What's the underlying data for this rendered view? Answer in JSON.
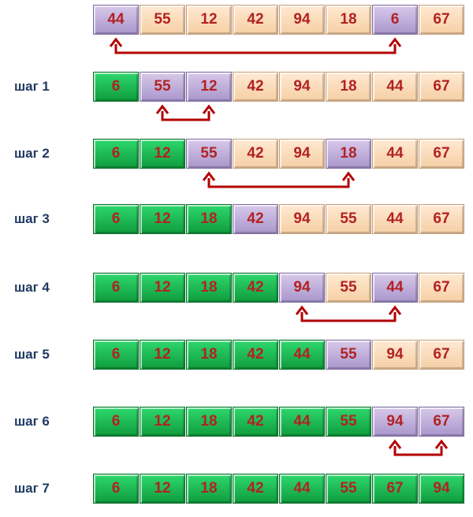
{
  "colors": {
    "unsorted": "#f6cfa5",
    "compared": "#a996cc",
    "sorted": "#0f9c3d",
    "number_text": "#b22222",
    "label_text": "#1f3a63",
    "arrow": "#b30000"
  },
  "rows": [
    {
      "label": "",
      "values": [
        "44",
        "55",
        "12",
        "42",
        "94",
        "18",
        "6",
        "67"
      ],
      "states": [
        "p",
        "u",
        "u",
        "u",
        "u",
        "u",
        "p",
        "u"
      ],
      "swap": [
        0,
        6
      ]
    },
    {
      "label": "шаг 1",
      "values": [
        "6",
        "55",
        "12",
        "42",
        "94",
        "18",
        "44",
        "67"
      ],
      "states": [
        "s",
        "p",
        "p",
        "u",
        "u",
        "u",
        "u",
        "u"
      ],
      "swap": [
        1,
        2
      ]
    },
    {
      "label": "шаг 2",
      "values": [
        "6",
        "12",
        "55",
        "42",
        "94",
        "18",
        "44",
        "67"
      ],
      "states": [
        "s",
        "s",
        "p",
        "u",
        "u",
        "p",
        "u",
        "u"
      ],
      "swap": [
        2,
        5
      ]
    },
    {
      "label": "шаг 3",
      "values": [
        "6",
        "12",
        "18",
        "42",
        "94",
        "55",
        "44",
        "67"
      ],
      "states": [
        "s",
        "s",
        "s",
        "p",
        "u",
        "u",
        "u",
        "u"
      ],
      "swap": null
    },
    {
      "label": "шаг 4",
      "values": [
        "6",
        "12",
        "18",
        "42",
        "94",
        "55",
        "44",
        "67"
      ],
      "states": [
        "s",
        "s",
        "s",
        "s",
        "p",
        "u",
        "p",
        "u"
      ],
      "swap": [
        4,
        6
      ]
    },
    {
      "label": "шаг 5",
      "values": [
        "6",
        "12",
        "18",
        "42",
        "44",
        "55",
        "94",
        "67"
      ],
      "states": [
        "s",
        "s",
        "s",
        "s",
        "s",
        "p",
        "u",
        "u"
      ],
      "swap": null
    },
    {
      "label": "шаг 6",
      "values": [
        "6",
        "12",
        "18",
        "42",
        "44",
        "55",
        "94",
        "67"
      ],
      "states": [
        "s",
        "s",
        "s",
        "s",
        "s",
        "s",
        "p",
        "p"
      ],
      "swap": [
        6,
        7
      ]
    },
    {
      "label": "шаг 7",
      "values": [
        "6",
        "12",
        "18",
        "42",
        "44",
        "55",
        "67",
        "94"
      ],
      "states": [
        "s",
        "s",
        "s",
        "s",
        "s",
        "s",
        "s",
        "s"
      ],
      "swap": null
    }
  ]
}
